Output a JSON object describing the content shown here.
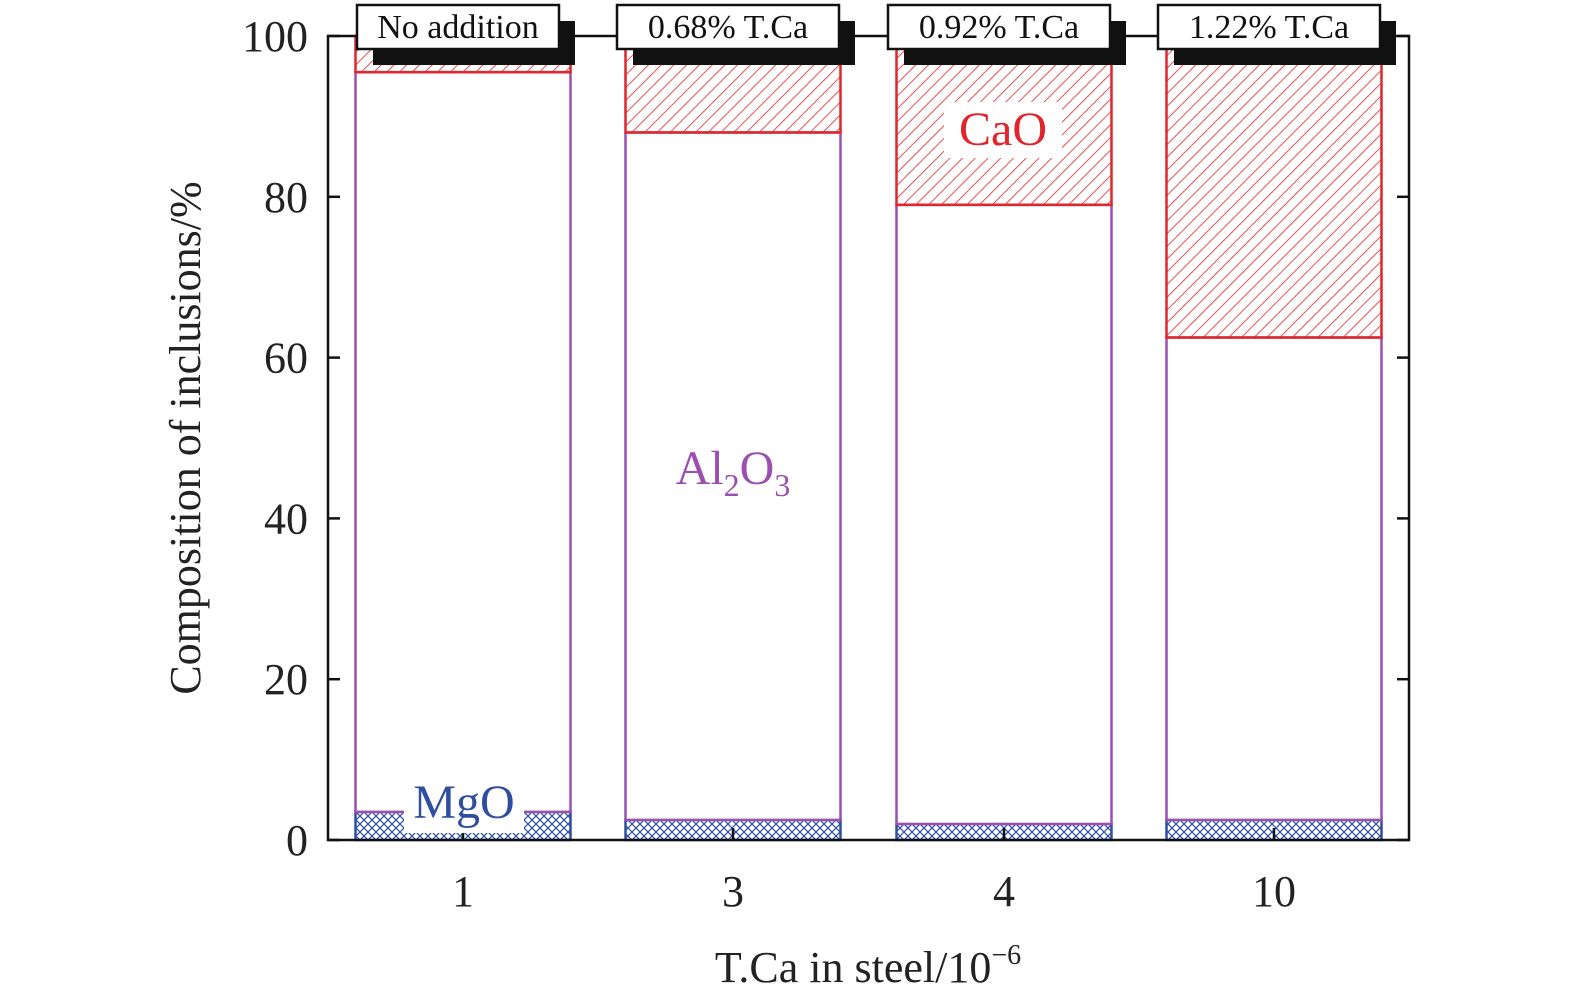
{
  "chart_data": {
    "type": "bar",
    "stacked": true,
    "categories": [
      "1",
      "3",
      "4",
      "10"
    ],
    "bar_labels": [
      "No addition",
      "0.68% T.Ca",
      "0.92% T.Ca",
      "1.22% T.Ca"
    ],
    "series": [
      {
        "name": "MgO",
        "color": "#2f4ea0",
        "pattern": "crosshatch",
        "values": [
          3.5,
          2.5,
          2.0,
          2.5
        ]
      },
      {
        "name": "Al2O3",
        "color": "#9b4fb0",
        "pattern": "none",
        "values": [
          92.0,
          85.5,
          77.0,
          60.0
        ]
      },
      {
        "name": "CaO",
        "color": "#e0262b",
        "pattern": "diagonal",
        "values": [
          4.5,
          12.0,
          21.0,
          37.5
        ]
      }
    ],
    "annotations": {
      "mgo": "MgO",
      "al2o3_main": "Al",
      "al2o3_sub1": "2",
      "al2o3_mid": "O",
      "al2o3_sub2": "3",
      "cao": "CaO"
    },
    "ylabel": "Composition of inclusions/%",
    "xlabel": "T.Ca in steel/10",
    "xlabel_exponent": "−6",
    "ylim": [
      0,
      100
    ],
    "yticks": [
      "0",
      "20",
      "40",
      "60",
      "80",
      "100"
    ]
  }
}
